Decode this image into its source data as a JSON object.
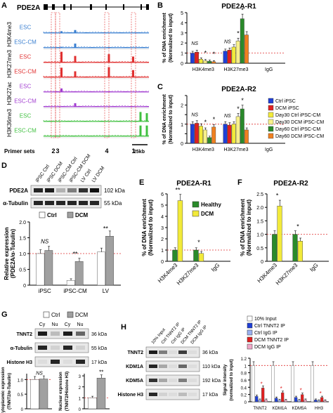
{
  "panelA": {
    "label": "A",
    "gene": "PDE2A",
    "tracks": [
      {
        "group": "H3K4me3",
        "rows": [
          {
            "name": "ESC",
            "color": "#3a7fd0",
            "peaks": [
              [
                0.17,
                0.15
              ],
              [
                0.3,
                0.25
              ]
            ]
          },
          {
            "name": "ESC-CM",
            "color": "#3a7fd0",
            "peaks": [
              [
                0.17,
                0.08
              ],
              [
                0.3,
                0.35
              ]
            ]
          }
        ]
      },
      {
        "group": "H3K27me3",
        "rows": [
          {
            "name": "ESC",
            "color": "#e03030",
            "peaks": [
              [
                0.17,
                0.9
              ],
              [
                0.3,
                0.55
              ],
              [
                0.62,
                0.7
              ],
              [
                0.85,
                0.5
              ]
            ]
          },
          {
            "name": "ESC-CM",
            "color": "#e03030",
            "peaks": [
              [
                0.17,
                0.8
              ],
              [
                0.3,
                0.5
              ],
              [
                0.62,
                0.85
              ],
              [
                0.85,
                0.6
              ]
            ]
          }
        ]
      },
      {
        "group": "H3K27ac",
        "rows": [
          {
            "name": "ESC",
            "color": "#a23ed0",
            "peaks": [
              [
                0.17,
                0.3
              ]
            ]
          },
          {
            "name": "ESC-CM",
            "color": "#a23ed0",
            "peaks": [
              [
                0.3,
                0.3
              ]
            ]
          }
        ]
      },
      {
        "group": "H3K36me3",
        "rows": [
          {
            "name": "ESC",
            "color": "#40c040",
            "peaks": [
              [
                0.92,
                0.8
              ],
              [
                0.98,
                0.7
              ]
            ]
          },
          {
            "name": "ESC-CM",
            "color": "#40c040",
            "peaks": [
              [
                0.92,
                0.9
              ],
              [
                0.98,
                0.9
              ]
            ]
          }
        ]
      }
    ],
    "primer_label": "Primer sets",
    "primer_numbers": [
      "2",
      "3",
      "4",
      "1"
    ],
    "scale_label": "25kb"
  },
  "panelB": {
    "label": "B",
    "title": "PDE2A-R1",
    "ylabel": "% of DNA enrichment (Normalized to input)",
    "groups": [
      "H3K4me3",
      "H3K27me3",
      "IgG"
    ],
    "ns_label": "NS",
    "star_label": "*"
  },
  "panelC": {
    "label": "C",
    "title": "PDE2A-R2",
    "ylabel": "% of DNA enrichment (Normalized to input)",
    "groups": [
      "H3K4me3",
      "H3K27me3",
      "IgG"
    ],
    "ns_label": "NS",
    "star_label": "*"
  },
  "legend_BC": [
    {
      "name": "Ctrl iPSC",
      "color": "#1f3fd6"
    },
    {
      "name": "DCM iPSC",
      "color": "#e02020"
    },
    {
      "name": "Day30 Ctrl iPSC-CM",
      "color": "#f2ea3a"
    },
    {
      "name": "Day30 DCM iPSC-CM",
      "color": "#f7f08a"
    },
    {
      "name": "Day60 Ctrl iPSC-CM",
      "color": "#2a8a2a"
    },
    {
      "name": "Day60 DCM iPSC-CM",
      "color": "#f08020"
    }
  ],
  "panelD": {
    "label": "D",
    "lane_labels": [
      "iPSC Ctrl",
      "iPSC DCM",
      "iPSC-CM Ctrl",
      "iPSC-CM DCM",
      "LV Ctrl",
      "LV DCM"
    ],
    "blots": [
      {
        "name": "PDE2A",
        "kda": "102 kDa"
      },
      {
        "name": "α-Tubulin",
        "kda": "55 kDa"
      }
    ],
    "legend": [
      {
        "name": "Ctrl",
        "color": "#ffffff"
      },
      {
        "name": "DCM",
        "color": "#a0a0a0"
      }
    ],
    "ylabel": "Relative expression (PDE2A/α-Tubulin)",
    "categories": [
      "iPSC",
      "iPSC-CM",
      "LV"
    ],
    "ns_label": "NS",
    "star2_label": "**"
  },
  "panelE": {
    "label": "E",
    "title": "PDE2A-R1",
    "ylabel": "% of DNA enrichment (Normalized to input)",
    "groups": [
      "H3K4me3",
      "H3K27me3",
      "IgG"
    ],
    "legend": [
      {
        "name": "Healthy",
        "color": "#2a8a2a"
      },
      {
        "name": "DCM",
        "color": "#f2ea3a"
      }
    ],
    "star2_label": "**",
    "star_label": "*"
  },
  "panelF": {
    "label": "F",
    "title": "PDE2A-R2",
    "ylabel": "% of DNA enrichment (Normalized to input)",
    "groups": [
      "H3K4me3",
      "H3K27me3",
      "IgG"
    ],
    "star_label": "*"
  },
  "panelG": {
    "label": "G",
    "legend": [
      {
        "name": "Ctrl",
        "color": "#ffffff"
      },
      {
        "name": "DCM",
        "color": "#a0a0a0"
      }
    ],
    "lane_labels": [
      "Cy",
      "Nu",
      "Cy",
      "Nu"
    ],
    "blots": [
      {
        "name": "TNNT2",
        "kda": "36 kDa"
      },
      {
        "name": "α-Tubulin",
        "kda": "55 kDa"
      },
      {
        "name": "Histone H3",
        "kda": "17 kDa"
      }
    ],
    "ylabel_left": "Cytoplasmic expression (TNNT2/α-Tubulin)",
    "ylabel_right": "Nuclear expression (TNNT2/Histone H3)",
    "ns_label": "NS",
    "star2_label": "**"
  },
  "panelH": {
    "label": "H",
    "lane_labels": [
      "10% Input",
      "Ctrl TNNT2 IP",
      "Ctrl IgG IP",
      "DCM TNNT2 IP",
      "DCM IgG IP"
    ],
    "blots": [
      {
        "name": "TNNT2",
        "kda": "36 kDa"
      },
      {
        "name": "KDM1A",
        "kda": "110 kDa"
      },
      {
        "name": "KDM5A",
        "kda": "192 kDa"
      },
      {
        "name": "Histone H3",
        "kda": "17 kDa"
      }
    ],
    "legend": [
      {
        "name": "10% Input",
        "color": "#ffffff"
      },
      {
        "name": "Ctrl TNNT2 IP",
        "color": "#1f3fd6"
      },
      {
        "name": "Ctrl IgG IP",
        "color": "#9ab0f0"
      },
      {
        "name": "DCM TNNT2 IP",
        "color": "#e02020"
      },
      {
        "name": "DCM IgG IP",
        "color": "#f0a8c8"
      }
    ],
    "ylabel": "Signal intensity (normalized to input)",
    "categories": [
      "TNNT2",
      "KDM1A",
      "KDM5A",
      "HH3"
    ],
    "star_label": "*"
  },
  "chart_data": [
    {
      "id": "B",
      "type": "bar",
      "title": "PDE2A-R1",
      "ylabel": "% of DNA enrichment (Normalized to input)",
      "categories": [
        "H3K4me3",
        "H3K27me3",
        "IgG"
      ],
      "series": [
        {
          "name": "Ctrl iPSC",
          "values": [
            1.0,
            1.2,
            0
          ]
        },
        {
          "name": "DCM iPSC",
          "values": [
            1.1,
            1.3,
            0
          ]
        },
        {
          "name": "Day30 Ctrl iPSC-CM",
          "values": [
            0.4,
            1.6,
            0
          ]
        },
        {
          "name": "Day30 DCM iPSC-CM",
          "values": [
            0.25,
            2.2,
            0
          ]
        },
        {
          "name": "Day60 Ctrl iPSC-CM",
          "values": [
            0.2,
            4.4,
            0
          ]
        },
        {
          "name": "Day60 DCM iPSC-CM",
          "values": [
            0.15,
            2.8,
            0
          ]
        }
      ],
      "ylim": [
        0,
        5
      ],
      "yticks": [
        0,
        1,
        2,
        3,
        4,
        5
      ]
    },
    {
      "id": "C",
      "type": "bar",
      "title": "PDE2A-R2",
      "ylabel": "% of DNA enrichment (Normalized to input)",
      "categories": [
        "H3K4me3",
        "H3K27me3",
        "IgG"
      ],
      "series": [
        {
          "name": "Ctrl iPSC",
          "values": [
            1.0,
            1.0,
            0
          ]
        },
        {
          "name": "DCM iPSC",
          "values": [
            1.05,
            0.95,
            0
          ]
        },
        {
          "name": "Day30 Ctrl iPSC-CM",
          "values": [
            0.9,
            1.0,
            0
          ]
        },
        {
          "name": "Day30 DCM iPSC-CM",
          "values": [
            0.7,
            1.4,
            0
          ]
        },
        {
          "name": "Day60 Ctrl iPSC-CM",
          "values": [
            0.3,
            1.8,
            0
          ]
        },
        {
          "name": "Day60 DCM iPSC-CM",
          "values": [
            0.85,
            0.7,
            0
          ]
        }
      ],
      "ylim": [
        0,
        2.5
      ],
      "yticks": [
        0,
        0.5,
        1,
        1.5,
        2,
        2.5
      ],
      "yticklabels": [
        "0",
        "",
        "1",
        "",
        "2",
        ""
      ]
    },
    {
      "id": "D",
      "type": "bar",
      "ylabel": "Relative expression (PDE2A/α-Tubulin)",
      "categories": [
        "iPSC",
        "iPSC-CM",
        "LV"
      ],
      "series": [
        {
          "name": "Ctrl",
          "values": [
            1.0,
            0.15,
            1.05
          ]
        },
        {
          "name": "DCM",
          "values": [
            1.1,
            0.75,
            1.55
          ]
        }
      ],
      "ylim": [
        0,
        2.0
      ],
      "yticks": [
        0,
        0.5,
        1.0,
        1.5,
        2.0
      ],
      "yticklabels": [
        "0",
        "0.5",
        "1.0",
        "1.5",
        "2.0"
      ]
    },
    {
      "id": "E",
      "type": "bar",
      "title": "PDE2A-R1",
      "ylabel": "% of DNA enrichment (Normalized to input)",
      "categories": [
        "H3K4me3",
        "H3K27me3",
        "IgG"
      ],
      "series": [
        {
          "name": "Healthy",
          "values": [
            1.0,
            1.0,
            0
          ]
        },
        {
          "name": "DCM",
          "values": [
            5.4,
            0.7,
            0
          ]
        }
      ],
      "ylim": [
        0,
        6
      ],
      "yticks": [
        0,
        1,
        2,
        3,
        4,
        5,
        6
      ]
    },
    {
      "id": "F",
      "type": "bar",
      "title": "PDE2A-R2",
      "ylabel": "% of DNA enrichment (Normalized to input)",
      "categories": [
        "H3K4me3",
        "H3K27me3",
        "IgG"
      ],
      "series": [
        {
          "name": "Healthy",
          "values": [
            1.0,
            1.0,
            0
          ]
        },
        {
          "name": "DCM",
          "values": [
            2.05,
            0.75,
            0
          ]
        }
      ],
      "ylim": [
        0,
        2.5
      ],
      "yticks": [
        0,
        0.5,
        1,
        1.5,
        2,
        2.5
      ],
      "yticklabels": [
        "0",
        "0.5",
        "1.0",
        "1.5",
        "2.0",
        "2.5"
      ]
    },
    {
      "id": "G-left",
      "type": "bar",
      "ylabel": "Cytoplasmic expression (TNNT2/α-Tubulin)",
      "categories": [
        ""
      ],
      "series": [
        {
          "name": "Ctrl",
          "values": [
            1.0
          ]
        },
        {
          "name": "DCM",
          "values": [
            1.02
          ]
        }
      ],
      "ylim": [
        0,
        1.2
      ],
      "yticks": [
        0,
        0.5,
        1.0
      ],
      "yticklabels": [
        "0",
        "0.5",
        "1.0"
      ]
    },
    {
      "id": "G-right",
      "type": "bar",
      "ylabel": "Nuclear expression (TNNT2/Histone H3)",
      "categories": [
        ""
      ],
      "series": [
        {
          "name": "Ctrl",
          "values": [
            1.0
          ]
        },
        {
          "name": "DCM",
          "values": [
            2.8
          ]
        }
      ],
      "ylim": [
        0,
        3.2
      ],
      "yticks": [
        0,
        1,
        2,
        3
      ],
      "yticklabels": [
        "0",
        "1",
        "2",
        "3"
      ]
    },
    {
      "id": "H",
      "type": "bar",
      "ylabel": "Signal intensity (normalized to input)",
      "categories": [
        "TNNT2",
        "KDM1A",
        "KDM5A",
        "HH3"
      ],
      "series": [
        {
          "name": "10% Input",
          "values": [
            1.0,
            1.0,
            1.0,
            1.0
          ]
        },
        {
          "name": "Ctrl TNNT2 IP",
          "values": [
            0.15,
            0.1,
            0.12,
            0.05
          ]
        },
        {
          "name": "Ctrl IgG IP",
          "values": [
            0.05,
            0.04,
            0.04,
            0.03
          ]
        },
        {
          "name": "DCM TNNT2 IP",
          "values": [
            0.38,
            0.25,
            0.2,
            0.12
          ]
        },
        {
          "name": "DCM IgG IP",
          "values": [
            0.05,
            0.04,
            0.05,
            0.03
          ]
        }
      ],
      "ylim": [
        0,
        1.2
      ],
      "yticks": [
        0,
        0.2,
        0.4,
        0.6,
        0.8,
        1.0,
        1.2
      ],
      "yticklabels": [
        "0",
        "0.2",
        "0.4",
        "0.6",
        "0.8",
        "1",
        "1.2"
      ]
    }
  ]
}
